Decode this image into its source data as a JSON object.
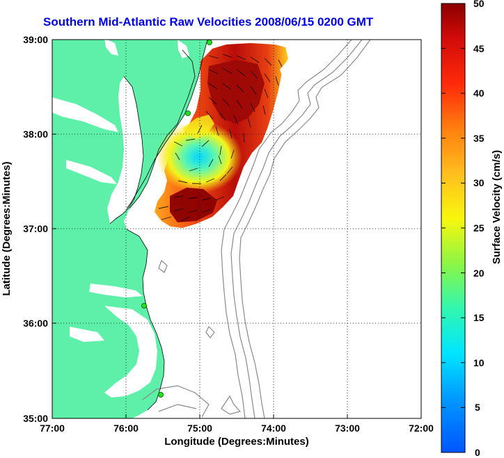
{
  "title": "Southern Mid-Atlantic Raw Velocities 2008/06/15 0200 GMT",
  "x_axis": {
    "label": "Longitude (Degrees:Minutes)",
    "ticks": [
      "77:00",
      "76:00",
      "75:00",
      "74:00",
      "73:00",
      "72:00"
    ]
  },
  "y_axis": {
    "label": "Latitude (Degrees:Minutes)",
    "ticks": [
      "39:00",
      "38:00",
      "37:00",
      "36:00",
      "35:00"
    ]
  },
  "colorbar": {
    "label": "Surface Velocity (cm/s)",
    "ticks": [
      "0",
      "5",
      "10",
      "15",
      "20",
      "25",
      "30",
      "35",
      "40",
      "45",
      "50"
    ],
    "min": 0,
    "max": 50
  },
  "map": {
    "lon_range": [
      -77,
      -72
    ],
    "lat_range": [
      35,
      39
    ],
    "grid": "dotted",
    "land_color": "#5ef0a8",
    "ocean_color": "#ffffff",
    "bathymetry_color": "#8a8a8a",
    "station_color": "#20e020"
  }
}
